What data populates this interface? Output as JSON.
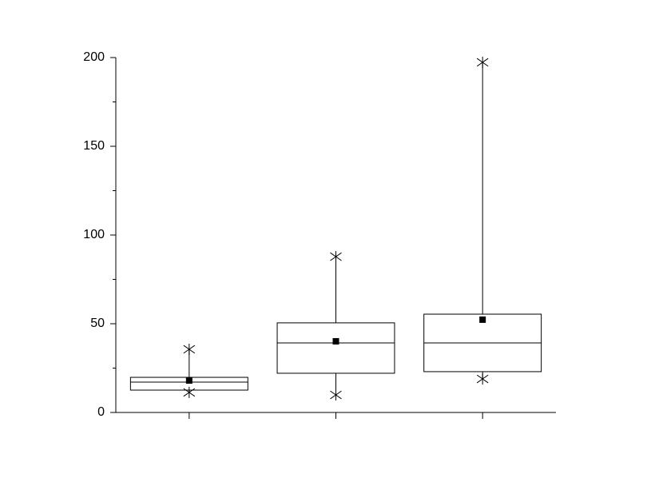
{
  "chart_data": {
    "type": "box",
    "categories": [
      null,
      null,
      null
    ],
    "boxes": [
      {
        "min": 11.3,
        "q1": 12.6,
        "median": 17.1,
        "q3": 19.8,
        "max": 35.6,
        "mean": 18
      },
      {
        "min": 9.9,
        "q1": 22.1,
        "median": 39.2,
        "q3": 50.5,
        "max": 87.8,
        "mean": 40.1
      },
      {
        "min": 18.9,
        "q1": 23,
        "median": 39.2,
        "q3": 55.4,
        "max": 197.3,
        "mean": 52.3
      }
    ],
    "color": "#000000",
    "ylim": [
      0,
      200
    ],
    "yticks": [
      0,
      50,
      100,
      150,
      200
    ],
    "yminorticks": [
      25,
      75,
      125,
      175
    ]
  }
}
